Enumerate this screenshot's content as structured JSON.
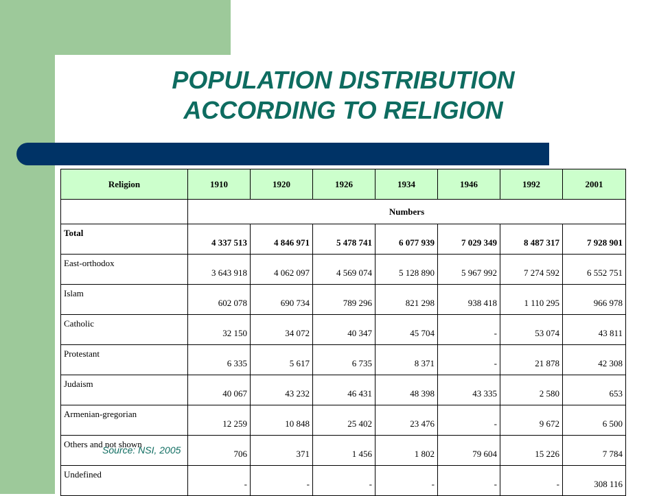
{
  "title": {
    "line1": "POPULATION DISTRIBUTION",
    "line2": "ACCORDING TO RELIGION"
  },
  "colors": {
    "accent_green": "#9dc99a",
    "title_teal": "#0e6c60",
    "bar_navy": "#003366",
    "header_fill": "#ccffcc"
  },
  "table": {
    "headers": [
      "Religion",
      "1910",
      "1920",
      "1926",
      "1934",
      "1946",
      "1992",
      "2001"
    ],
    "subheader": "Numbers",
    "rows": [
      {
        "label": "Total",
        "values": [
          "4 337 513",
          "4 846 971",
          "5 478 741",
          "6 077 939",
          "7 029 349",
          "8 487 317",
          "7 928 901"
        ]
      },
      {
        "label": "East-orthodox",
        "values": [
          "3 643 918",
          "4 062 097",
          "4 569 074",
          "5 128 890",
          "5 967 992",
          "7 274 592",
          "6 552 751"
        ]
      },
      {
        "label": "Islam",
        "values": [
          "602 078",
          "690 734",
          "789 296",
          "821 298",
          "938 418",
          "1 110 295",
          "966 978"
        ]
      },
      {
        "label": "Catholic",
        "values": [
          "32 150",
          "34 072",
          "40 347",
          "45 704",
          "-",
          "53 074",
          "43 811"
        ]
      },
      {
        "label": "Protestant",
        "values": [
          "6 335",
          "5 617",
          "6 735",
          "8 371",
          "-",
          "21 878",
          "42 308"
        ]
      },
      {
        "label": "Judaism",
        "values": [
          "40 067",
          "43 232",
          "46 431",
          "48 398",
          "43 335",
          "2 580",
          "653"
        ]
      },
      {
        "label": "Armenian-gregorian",
        "values": [
          "12 259",
          "10 848",
          "25 402",
          "23 476",
          "-",
          "9 672",
          "6 500"
        ]
      },
      {
        "label": "Others and not shown",
        "values": [
          "706",
          "371",
          "1 456",
          "1 802",
          "79 604",
          "15 226",
          "7 784"
        ]
      },
      {
        "label": "Undefined",
        "values": [
          "-",
          "-",
          "-",
          "-",
          "-",
          "-",
          "308 116"
        ]
      }
    ]
  },
  "source": "Source: NSI, 2005"
}
